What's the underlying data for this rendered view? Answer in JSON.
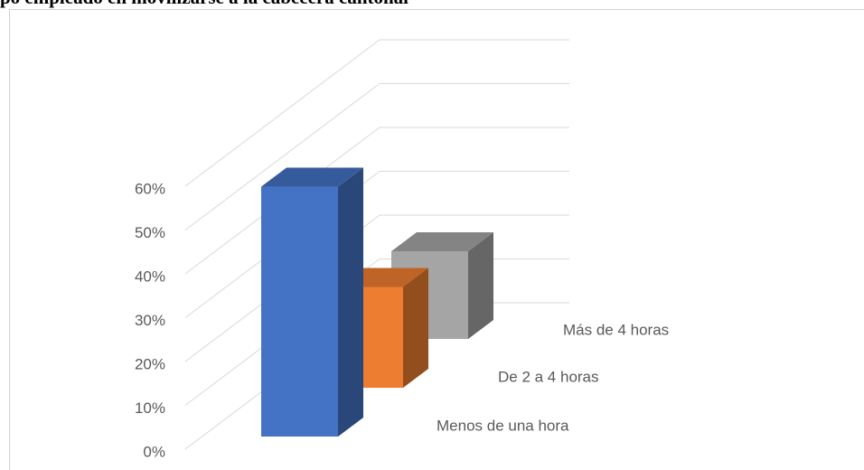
{
  "chart_data": {
    "type": "bar3d",
    "title": "po empleado en movilizarse a la cabecera cantonal",
    "categories": [
      "Menos de una hora",
      "De 2 a 4 horas",
      "Más de 4 horas"
    ],
    "values": [
      57,
      23,
      20
    ],
    "colors": [
      "#4472c4",
      "#ed7d31",
      "#a5a5a5"
    ],
    "ylim": [
      0,
      60
    ],
    "yticks": [
      {
        "value": 0,
        "label": "0%"
      },
      {
        "value": 10,
        "label": "10%"
      },
      {
        "value": 20,
        "label": "20%"
      },
      {
        "value": 30,
        "label": "30%"
      },
      {
        "value": 40,
        "label": "40%"
      },
      {
        "value": 50,
        "label": "50%"
      },
      {
        "value": 60,
        "label": "60%"
      }
    ],
    "grid": true
  }
}
